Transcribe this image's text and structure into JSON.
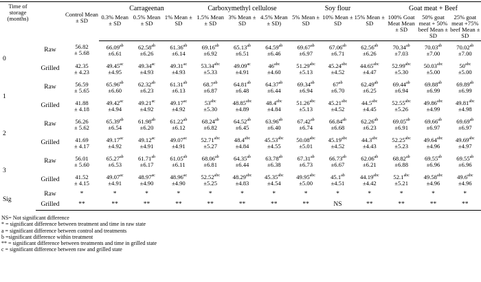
{
  "table": {
    "time_header": "Time of storage (months)",
    "control_header": "Control Mean ± SD",
    "groups": [
      {
        "label": "Carrageenan",
        "columns": [
          "0.3% Mean ± SD",
          "0.5% Mean ± SD",
          "1% Mean ± SD"
        ]
      },
      {
        "label": "Carboxymethyl cellulose",
        "columns": [
          "1.5% Mean ± SD",
          "3% Mean ± SD",
          "4.5% Mean ± SD)"
        ]
      },
      {
        "label": "Soy flour",
        "columns": [
          "5% Mean ± SD",
          "10% Mean ± SD",
          "15% Mean ± SD"
        ]
      },
      {
        "label": "Goat meat + Beef",
        "columns": [
          "100% Goat Meat Mean ± SD",
          "50% goat meat + 50% beef Mean ± SD",
          "25% goat meat +75% beef Mean ± SD"
        ]
      }
    ],
    "rows": [
      {
        "time": "0",
        "state": "Raw",
        "cells": [
          [
            "56.82",
            "± 5.68"
          ],
          [
            "66.09",
            "ab",
            "±6.61"
          ],
          [
            "62.58",
            "ab",
            "±6.26"
          ],
          [
            "61.36",
            "ab",
            "±6.14"
          ],
          [
            "69.16",
            "ab",
            "±6.92"
          ],
          [
            "65.13",
            "ab",
            "±6.51"
          ],
          [
            "64.59",
            "ab",
            "±6.46"
          ],
          [
            "69.67",
            "ab",
            "±6.97"
          ],
          [
            "67.06",
            "ab",
            "±6.71"
          ],
          [
            "62.56",
            "ab",
            "±6.26"
          ],
          [
            "70.34",
            "ab",
            "±7.03"
          ],
          [
            "70.03",
            "ab",
            "±7.00"
          ],
          [
            "70.02",
            "ab",
            "±7.00"
          ]
        ]
      },
      {
        "state": "Grilled",
        "cells": [
          [
            "42.35",
            "± 4.23"
          ],
          [
            "49.45",
            "ac",
            "±4.95"
          ],
          [
            "49.34",
            "ac",
            "±4.93"
          ],
          [
            "49.31",
            "ac",
            "±4.93"
          ],
          [
            "53.34",
            "abc",
            "±5.33"
          ],
          [
            "49.09",
            "ac",
            "±4.91"
          ],
          [
            "46",
            "abc",
            "±4.60"
          ],
          [
            "51.29",
            "abc",
            "±5.13"
          ],
          [
            "45.24",
            "abc",
            "±4.52"
          ],
          [
            "44.65",
            "abc",
            "±4.47"
          ],
          [
            "52.99",
            "abc",
            "±5.30"
          ],
          [
            "50.03",
            "abc",
            "±5.00"
          ],
          [
            "50",
            "abc",
            "±5.00"
          ]
        ]
      },
      {
        "time": "1",
        "state": "Raw",
        "cells": [
          [
            "56.59",
            "± 5.65"
          ],
          [
            "65.96",
            "ab",
            "±6.60"
          ],
          [
            "62.32",
            "ab",
            "±6.23"
          ],
          [
            "61.31",
            "ab",
            "±6.13"
          ],
          [
            "68.7",
            "ab",
            "±6.87"
          ],
          [
            "64.81",
            "ab",
            "±6.48"
          ],
          [
            "64.37",
            "ab",
            "±6.44"
          ],
          [
            "69.34",
            "ab",
            "±6.94"
          ],
          [
            "67",
            "ab",
            "±6.70"
          ],
          [
            "62.49",
            "ab",
            "±6.25"
          ],
          [
            "69.44",
            "ab",
            "±6.94"
          ],
          [
            "69.88",
            "ab",
            "±6.99"
          ],
          [
            "69.89",
            "ab",
            "±6.99"
          ]
        ]
      },
      {
        "state": "Grilled",
        "cells": [
          [
            "41.88",
            "± 4.18"
          ],
          [
            "49.42",
            "ac",
            "±4.94"
          ],
          [
            "49.21",
            "ac",
            "±4.92"
          ],
          [
            "49.17",
            "ac",
            "±4.92"
          ],
          [
            "53",
            "abc",
            "±5.30"
          ],
          [
            "48.85",
            "abc",
            "±4.89"
          ],
          [
            "48.4",
            "abc",
            "±4.84"
          ],
          [
            "51.26",
            "abc",
            "±5.13"
          ],
          [
            "45.21",
            "abc",
            "±4.52"
          ],
          [
            "44.5",
            "abc",
            "±4.45"
          ],
          [
            "52.55",
            "abc",
            "±5.26"
          ],
          [
            "49.86",
            "abc",
            "±4.99"
          ],
          [
            "49.81",
            "abc",
            "±4.98"
          ]
        ]
      },
      {
        "time": "2",
        "state": "Raw",
        "cells": [
          [
            "56.26",
            "± 5.62"
          ],
          [
            "65.39",
            "ab",
            "±6.54"
          ],
          [
            "61.98",
            "ab",
            "±6.20"
          ],
          [
            "61.22",
            "ab",
            "±6.12"
          ],
          [
            "68.24",
            "ab",
            "±6.82"
          ],
          [
            "64.52",
            "ab",
            "±6.45"
          ],
          [
            "63.96",
            "ab",
            "±6.40"
          ],
          [
            "67.42",
            "ab",
            "±6.74"
          ],
          [
            "66.84",
            "ab",
            "±6.68"
          ],
          [
            "62.26",
            "ab",
            "±6.23"
          ],
          [
            "69.05",
            "ab",
            "±6.91"
          ],
          [
            "69.66",
            "ab",
            "±6.97"
          ],
          [
            "69.69",
            "ab",
            "±6.97"
          ]
        ]
      },
      {
        "state": "Grilled",
        "cells": [
          [
            "41.69",
            "± 4.17"
          ],
          [
            "49.17",
            "ac",
            "±4.92"
          ],
          [
            "49.12",
            "ac",
            "±4.91"
          ],
          [
            "49.07",
            "ac",
            "±4.91"
          ],
          [
            "52.71",
            "abc",
            "±5.27"
          ],
          [
            "48.4",
            "abc",
            "±4.84"
          ],
          [
            "45.53",
            "abc",
            "±4.55"
          ],
          [
            "50.08",
            "abc",
            "±5.01"
          ],
          [
            "45.19",
            "abc",
            "±4.52"
          ],
          [
            "44.3",
            "abc",
            "±4.43"
          ],
          [
            "52.25",
            "abc",
            "±5.23"
          ],
          [
            "49.64",
            "abc",
            "±4.96"
          ],
          [
            "49.69",
            "abc",
            "±4.97"
          ]
        ]
      },
      {
        "time": "3",
        "state": "Raw",
        "cells": [
          [
            "56.01",
            "± 5.60"
          ],
          [
            "65.27",
            "ab",
            "±6.53"
          ],
          [
            "61.71",
            "ab",
            "±6.17"
          ],
          [
            "61.05",
            "ab",
            "±6.11"
          ],
          [
            "68.06",
            "ab",
            "±6.81"
          ],
          [
            "64.35",
            "ab",
            "±6.44"
          ],
          [
            "63.78",
            "ab",
            "±6.38"
          ],
          [
            "67.31",
            "ab",
            "±6.73"
          ],
          [
            "66.73",
            "ab",
            "±6.67"
          ],
          [
            "62.06",
            "ab",
            "±6.21"
          ],
          [
            "68.82",
            "ab",
            "±6.88"
          ],
          [
            "69.55",
            "ab",
            "±6.96"
          ],
          [
            "69.55",
            "ab",
            "±6.96"
          ]
        ]
      },
      {
        "state": "Grilled",
        "cells": [
          [
            "41.52",
            "± 4.15"
          ],
          [
            "49.07",
            "ac",
            "±4.91"
          ],
          [
            "48.97",
            "ac",
            "±4.90"
          ],
          [
            "48.96",
            "ac",
            "±4.90"
          ],
          [
            "52.52",
            "abc",
            "±5.25"
          ],
          [
            "48.29",
            "abc",
            "±4.83"
          ],
          [
            "45.35",
            "abc",
            "±4.54"
          ],
          [
            "49.95",
            "abc",
            "±5.00"
          ],
          [
            "45.1",
            "ab",
            "±4.51"
          ],
          [
            "44.19",
            "abc",
            "±4.42"
          ],
          [
            "52.1",
            "abc",
            "±5.21"
          ],
          [
            "49.58",
            "abc",
            "±4.96"
          ],
          [
            "49.6",
            "abc",
            "±4.96"
          ]
        ]
      },
      {
        "time": "Sig",
        "state": "Raw",
        "cells": [
          "*",
          "*",
          "*",
          "*",
          "*",
          "*",
          "*",
          "*",
          "*",
          "*",
          "*",
          "*",
          "*"
        ]
      },
      {
        "state": "Grilled",
        "cells": [
          "**",
          "**",
          "**",
          "**",
          "**",
          "**",
          "**",
          "**",
          "NS",
          "**",
          "**",
          "**",
          "**"
        ]
      }
    ]
  },
  "footnotes": [
    "NS= Not significant difference",
    "* = significant difference between treatment and time in raw state",
    "a = significant difference between control and treatments",
    "b =significant difference within treatment",
    "** = significant difference between treatments and time in grilled state",
    "c = significant difference between raw and grilled state"
  ]
}
